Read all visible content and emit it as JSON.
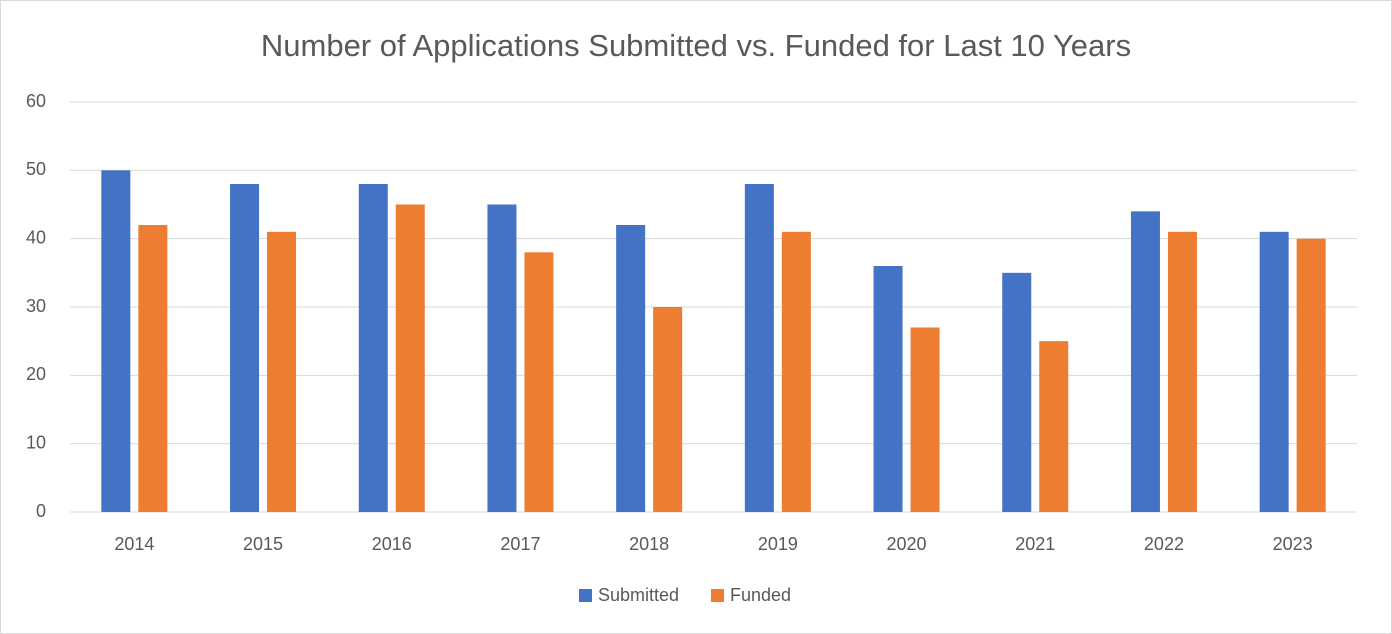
{
  "chart_data": {
    "type": "bar",
    "title": "Number of Applications Submitted vs. Funded for Last 10 Years",
    "categories": [
      "2014",
      "2015",
      "2016",
      "2017",
      "2018",
      "2019",
      "2020",
      "2021",
      "2022",
      "2023"
    ],
    "series": [
      {
        "name": "Submitted",
        "color": "#4472c4",
        "values": [
          50,
          48,
          48,
          45,
          42,
          48,
          36,
          35,
          44,
          41
        ]
      },
      {
        "name": "Funded",
        "color": "#ed7d31",
        "values": [
          42,
          41,
          45,
          38,
          30,
          41,
          27,
          25,
          41,
          40
        ]
      }
    ],
    "ylim": [
      0,
      60
    ],
    "yticks": [
      0,
      10,
      20,
      30,
      40,
      50,
      60
    ],
    "grid": true,
    "legend": "bottom"
  }
}
